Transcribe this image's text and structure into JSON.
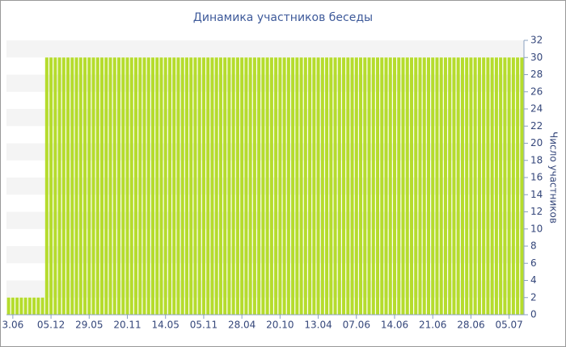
{
  "chart_data": {
    "type": "bar",
    "title": "Динамика участников беседы",
    "y_label": "Число участников",
    "categories": [
      null,
      "3.06",
      null,
      null,
      null,
      null,
      null,
      null,
      null,
      null,
      "05.12",
      null,
      null,
      null,
      null,
      null,
      null,
      null,
      null,
      "29.05",
      null,
      null,
      null,
      null,
      null,
      null,
      null,
      null,
      "20.11",
      null,
      null,
      null,
      null,
      null,
      null,
      null,
      null,
      "14.05",
      null,
      null,
      null,
      null,
      null,
      null,
      null,
      null,
      "05.11",
      null,
      null,
      null,
      null,
      null,
      null,
      null,
      null,
      "28.04",
      null,
      null,
      null,
      null,
      null,
      null,
      null,
      null,
      "20.10",
      null,
      null,
      null,
      null,
      null,
      null,
      null,
      null,
      "13.04",
      null,
      null,
      null,
      null,
      null,
      null,
      null,
      null,
      "07.06",
      null,
      null,
      null,
      null,
      null,
      null,
      null,
      null,
      "14.06",
      null,
      null,
      null,
      null,
      null,
      null,
      null,
      null,
      "21.06",
      null,
      null,
      null,
      null,
      null,
      null,
      null,
      null,
      "28.06",
      null,
      null,
      null,
      null,
      null,
      null,
      null,
      null,
      "05.07",
      null,
      null,
      null
    ],
    "values": [
      2,
      2,
      2,
      2,
      2,
      2,
      2,
      2,
      2,
      30,
      30,
      30,
      30,
      30,
      30,
      30,
      30,
      30,
      30,
      30,
      30,
      30,
      30,
      30,
      30,
      30,
      30,
      30,
      30,
      30,
      30,
      30,
      30,
      30,
      30,
      30,
      30,
      30,
      30,
      30,
      30,
      30,
      30,
      30,
      30,
      30,
      30,
      30,
      30,
      30,
      30,
      30,
      30,
      30,
      30,
      30,
      30,
      30,
      30,
      30,
      30,
      30,
      30,
      30,
      30,
      30,
      30,
      30,
      30,
      30,
      30,
      30,
      30,
      30,
      30,
      30,
      30,
      30,
      30,
      30,
      30,
      30,
      30,
      30,
      30,
      30,
      30,
      30,
      30,
      30,
      30,
      30,
      30,
      30,
      30,
      30,
      30,
      30,
      30,
      30,
      30,
      30,
      30,
      30,
      30,
      30,
      30,
      30,
      30,
      30,
      30,
      30,
      30,
      30,
      30,
      30,
      30,
      30,
      30,
      30,
      30,
      30
    ],
    "color": "#b5dc2d",
    "ylim": [
      0,
      32
    ],
    "yticks": [
      0,
      2,
      4,
      6,
      8,
      10,
      12,
      14,
      16,
      18,
      20,
      22,
      24,
      26,
      28,
      30,
      32
    ],
    "grid": true,
    "y_axis_side": "right"
  }
}
